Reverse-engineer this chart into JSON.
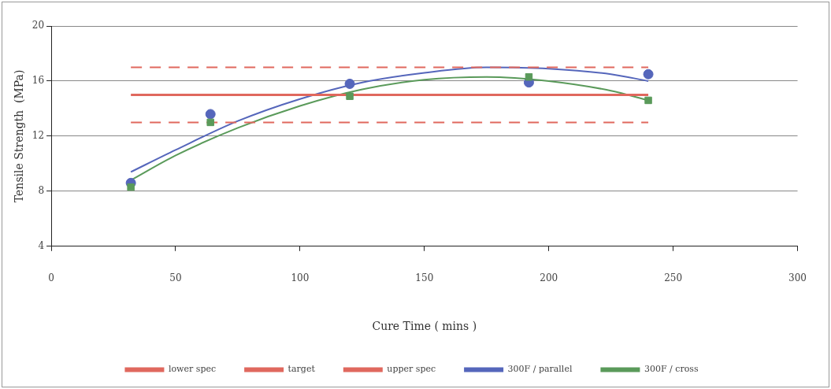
{
  "chart_data": {
    "type": "scatter",
    "xlabel": "Cure Time ( mins )",
    "ylabel": "Tensile Strength  (MPa)",
    "xlim": [
      0,
      300
    ],
    "xticks": [
      0,
      50,
      100,
      150,
      200,
      250,
      300
    ],
    "ylim": [
      4,
      20
    ],
    "yticks": [
      4,
      8,
      12,
      16,
      20
    ],
    "grid": "y",
    "legend": "bottom",
    "series": [
      {
        "name": "lower spec",
        "type": "line",
        "color": "#e0685e",
        "line_style": "dashed",
        "marker": "none",
        "x": [
          32,
          240
        ],
        "values": [
          13,
          13
        ]
      },
      {
        "name": "target",
        "type": "line",
        "color": "#e0685e",
        "line_style": "solid",
        "marker": "none",
        "x": [
          32,
          240
        ],
        "values": [
          15,
          15
        ]
      },
      {
        "name": "upper spec",
        "type": "line",
        "color": "#e0685e",
        "line_style": "dashed",
        "marker": "none",
        "x": [
          32,
          240
        ],
        "values": [
          17,
          17
        ]
      },
      {
        "name": "300F / parallel",
        "type": "line",
        "color": "#5566bb",
        "line_style": "solid",
        "marker": "none",
        "x": [
          32,
          50,
          75,
          100,
          125,
          150,
          175,
          200,
          225,
          240
        ],
        "values": [
          9.4,
          11.0,
          13.1,
          14.7,
          15.9,
          16.6,
          17.0,
          16.9,
          16.5,
          16.0
        ]
      },
      {
        "name": "300F / cross",
        "type": "line",
        "color": "#5a9a5a",
        "line_style": "solid",
        "marker": "none",
        "x": [
          32,
          50,
          75,
          100,
          125,
          150,
          175,
          200,
          225,
          240
        ],
        "values": [
          8.8,
          10.6,
          12.6,
          14.2,
          15.4,
          16.1,
          16.3,
          16.0,
          15.3,
          14.6
        ]
      },
      {
        "type": "scatter",
        "color": "#5566bb",
        "marker": "circle",
        "x": [
          32,
          64,
          120,
          192,
          240
        ],
        "values": [
          8.6,
          13.6,
          15.8,
          15.9,
          16.5
        ]
      },
      {
        "type": "scatter",
        "color": "#5a9a5a",
        "marker": "square",
        "x": [
          32,
          64,
          120,
          192,
          240
        ],
        "values": [
          8.3,
          13.0,
          14.9,
          16.3,
          14.6
        ]
      }
    ]
  }
}
